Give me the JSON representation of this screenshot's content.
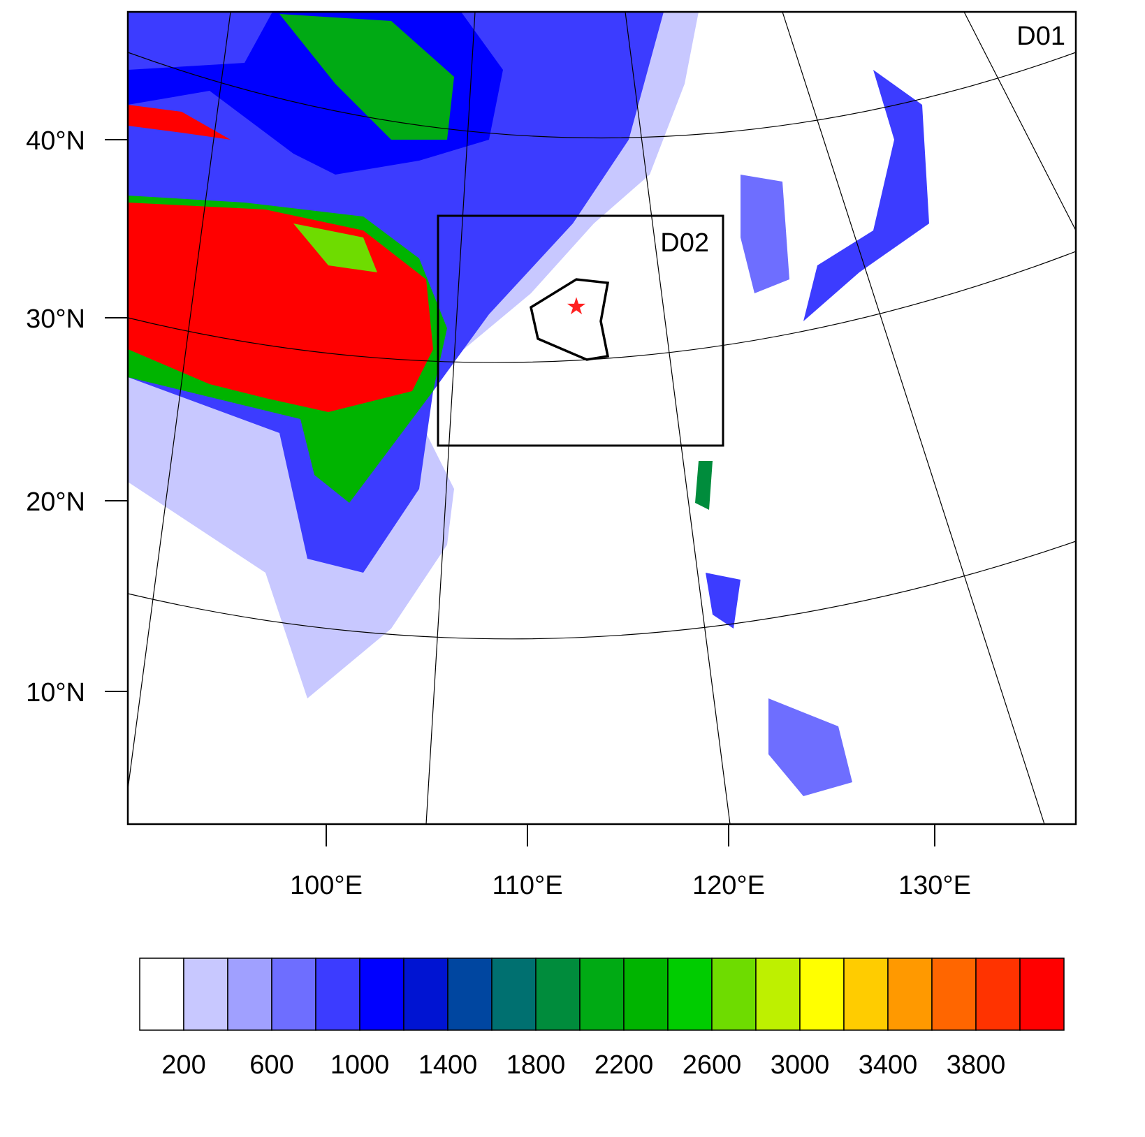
{
  "map": {
    "domains": [
      "D01",
      "D02"
    ],
    "lat_labels": [
      "40°N",
      "30°N",
      "20°N",
      "10°N"
    ],
    "lon_labels": [
      "100°E",
      "110°E",
      "120°E",
      "130°E"
    ],
    "colorbar": {
      "colors": [
        "#ffffff",
        "#c8c8ff",
        "#a0a0ff",
        "#6e6eff",
        "#3c3cff",
        "#0000ff",
        "#0014d2",
        "#0046a0",
        "#007070",
        "#008c3c",
        "#00aa14",
        "#00b400",
        "#00cc00",
        "#6edc00",
        "#bef000",
        "#ffff00",
        "#ffcc00",
        "#ff9900",
        "#ff6600",
        "#ff3300",
        "#ff0000"
      ],
      "labels": [
        "200",
        "600",
        "1000",
        "1400",
        "1800",
        "2200",
        "2600",
        "3000",
        "3400",
        "3800"
      ]
    }
  }
}
